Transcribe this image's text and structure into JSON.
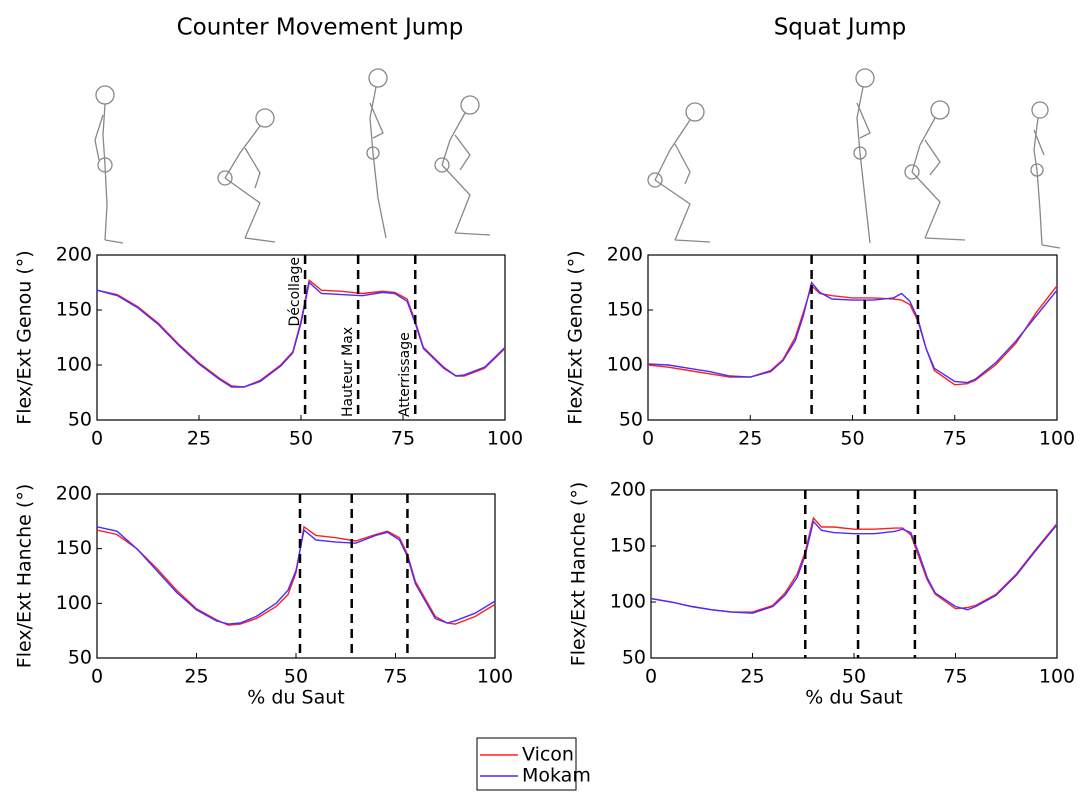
{
  "chart_data": [
    {
      "type": "line",
      "title": "Counter Movement Jump",
      "y_label": "Flex/Ext Genou (°)",
      "xlim": [
        0,
        100
      ],
      "xticks": [
        0,
        25,
        50,
        75,
        100
      ],
      "ylim": [
        50,
        200
      ],
      "yticks": [
        50,
        100,
        150,
        200
      ],
      "vlines": [
        51,
        64,
        78
      ],
      "annotations": [
        {
          "text": "Décollage",
          "x": 51
        },
        {
          "text": "Hauteur Max",
          "x": 64
        },
        {
          "text": "Atterrissage",
          "x": 78
        }
      ],
      "x": [
        0,
        5,
        10,
        15,
        20,
        25,
        30,
        33,
        36,
        40,
        45,
        48,
        50,
        52,
        55,
        60,
        65,
        70,
        73,
        76,
        78,
        80,
        85,
        88,
        90,
        95,
        100
      ],
      "series": [
        {
          "name": "Vicon",
          "color": "#ff2020",
          "values": [
            168,
            164,
            153,
            138,
            119,
            102,
            88,
            81,
            80,
            86,
            100,
            112,
            140,
            177,
            168,
            167,
            165,
            167,
            166,
            160,
            140,
            116,
            98,
            90,
            90,
            97,
            115
          ]
        },
        {
          "name": "Mokam",
          "color": "#4a2cff",
          "values": [
            168,
            163,
            152,
            137,
            118,
            101,
            87,
            80,
            80,
            85,
            99,
            111,
            138,
            175,
            165,
            164,
            163,
            166,
            165,
            158,
            138,
            115,
            97,
            90,
            91,
            98,
            116
          ]
        }
      ]
    },
    {
      "type": "line",
      "x_label": "% du Saut",
      "y_label": "Flex/Ext Hanche (°)",
      "xlim": [
        0,
        100
      ],
      "xticks": [
        0,
        25,
        50,
        75,
        100
      ],
      "ylim": [
        50,
        200
      ],
      "yticks": [
        50,
        100,
        150,
        200
      ],
      "vlines": [
        51,
        64,
        78
      ],
      "x": [
        0,
        5,
        10,
        15,
        20,
        25,
        30,
        33,
        36,
        40,
        45,
        48,
        50,
        52,
        55,
        60,
        65,
        70,
        73,
        76,
        78,
        80,
        85,
        88,
        90,
        95,
        100
      ],
      "series": [
        {
          "name": "Vicon",
          "color": "#ff2020",
          "values": [
            167,
            163,
            150,
            132,
            112,
            95,
            85,
            80,
            81,
            86,
            97,
            108,
            128,
            170,
            162,
            160,
            157,
            163,
            166,
            160,
            145,
            120,
            88,
            82,
            81,
            88,
            99
          ]
        },
        {
          "name": "Mokam",
          "color": "#4a2cff",
          "values": [
            170,
            166,
            150,
            130,
            110,
            94,
            84,
            81,
            82,
            88,
            100,
            112,
            130,
            167,
            158,
            156,
            155,
            162,
            165,
            158,
            143,
            118,
            86,
            82,
            84,
            91,
            102
          ]
        }
      ]
    },
    {
      "type": "line",
      "title": "Squat Jump",
      "y_label": "Flex/Ext Genou (°)",
      "xlim": [
        0,
        100
      ],
      "xticks": [
        0,
        25,
        50,
        75,
        100
      ],
      "ylim": [
        50,
        200
      ],
      "yticks": [
        50,
        100,
        150,
        200
      ],
      "vlines": [
        40,
        53,
        66
      ],
      "x": [
        0,
        5,
        10,
        15,
        20,
        25,
        30,
        33,
        36,
        38,
        40,
        42,
        45,
        50,
        55,
        60,
        62,
        64,
        66,
        68,
        70,
        75,
        78,
        80,
        85,
        90,
        95,
        100
      ],
      "series": [
        {
          "name": "Vicon",
          "color": "#ff2020",
          "values": [
            100,
            98,
            95,
            92,
            89,
            89,
            95,
            105,
            125,
            148,
            172,
            165,
            163,
            161,
            161,
            160,
            159,
            155,
            140,
            115,
            95,
            82,
            83,
            86,
            100,
            120,
            148,
            172
          ]
        },
        {
          "name": "Mokam",
          "color": "#4a2cff",
          "values": [
            101,
            100,
            97,
            94,
            90,
            89,
            94,
            104,
            122,
            145,
            175,
            166,
            160,
            159,
            159,
            161,
            165,
            158,
            142,
            115,
            97,
            85,
            84,
            87,
            102,
            122,
            145,
            168
          ]
        }
      ]
    },
    {
      "type": "line",
      "x_label": "% du Saut",
      "y_label": "Flex/Ext Hanche (°)",
      "xlim": [
        0,
        100
      ],
      "xticks": [
        0,
        25,
        50,
        75,
        100
      ],
      "ylim": [
        50,
        200
      ],
      "yticks": [
        50,
        100,
        150,
        200
      ],
      "vlines": [
        38,
        51,
        65
      ],
      "x": [
        0,
        5,
        10,
        15,
        20,
        25,
        30,
        33,
        36,
        38,
        40,
        42,
        45,
        50,
        55,
        60,
        62,
        64,
        66,
        68,
        70,
        75,
        78,
        80,
        85,
        90,
        95,
        100
      ],
      "series": [
        {
          "name": "Vicon",
          "color": "#ff2020",
          "values": [
            103,
            100,
            96,
            93,
            91,
            91,
            97,
            108,
            125,
            145,
            175,
            167,
            167,
            165,
            165,
            166,
            166,
            160,
            140,
            120,
            107,
            94,
            95,
            97,
            107,
            125,
            148,
            170
          ]
        },
        {
          "name": "Mokam",
          "color": "#4a2cff",
          "values": [
            103,
            100,
            96,
            93,
            91,
            90,
            96,
            106,
            122,
            142,
            172,
            164,
            162,
            161,
            161,
            163,
            165,
            162,
            143,
            122,
            108,
            96,
            93,
            96,
            106,
            124,
            147,
            169
          ]
        }
      ]
    }
  ]
}
